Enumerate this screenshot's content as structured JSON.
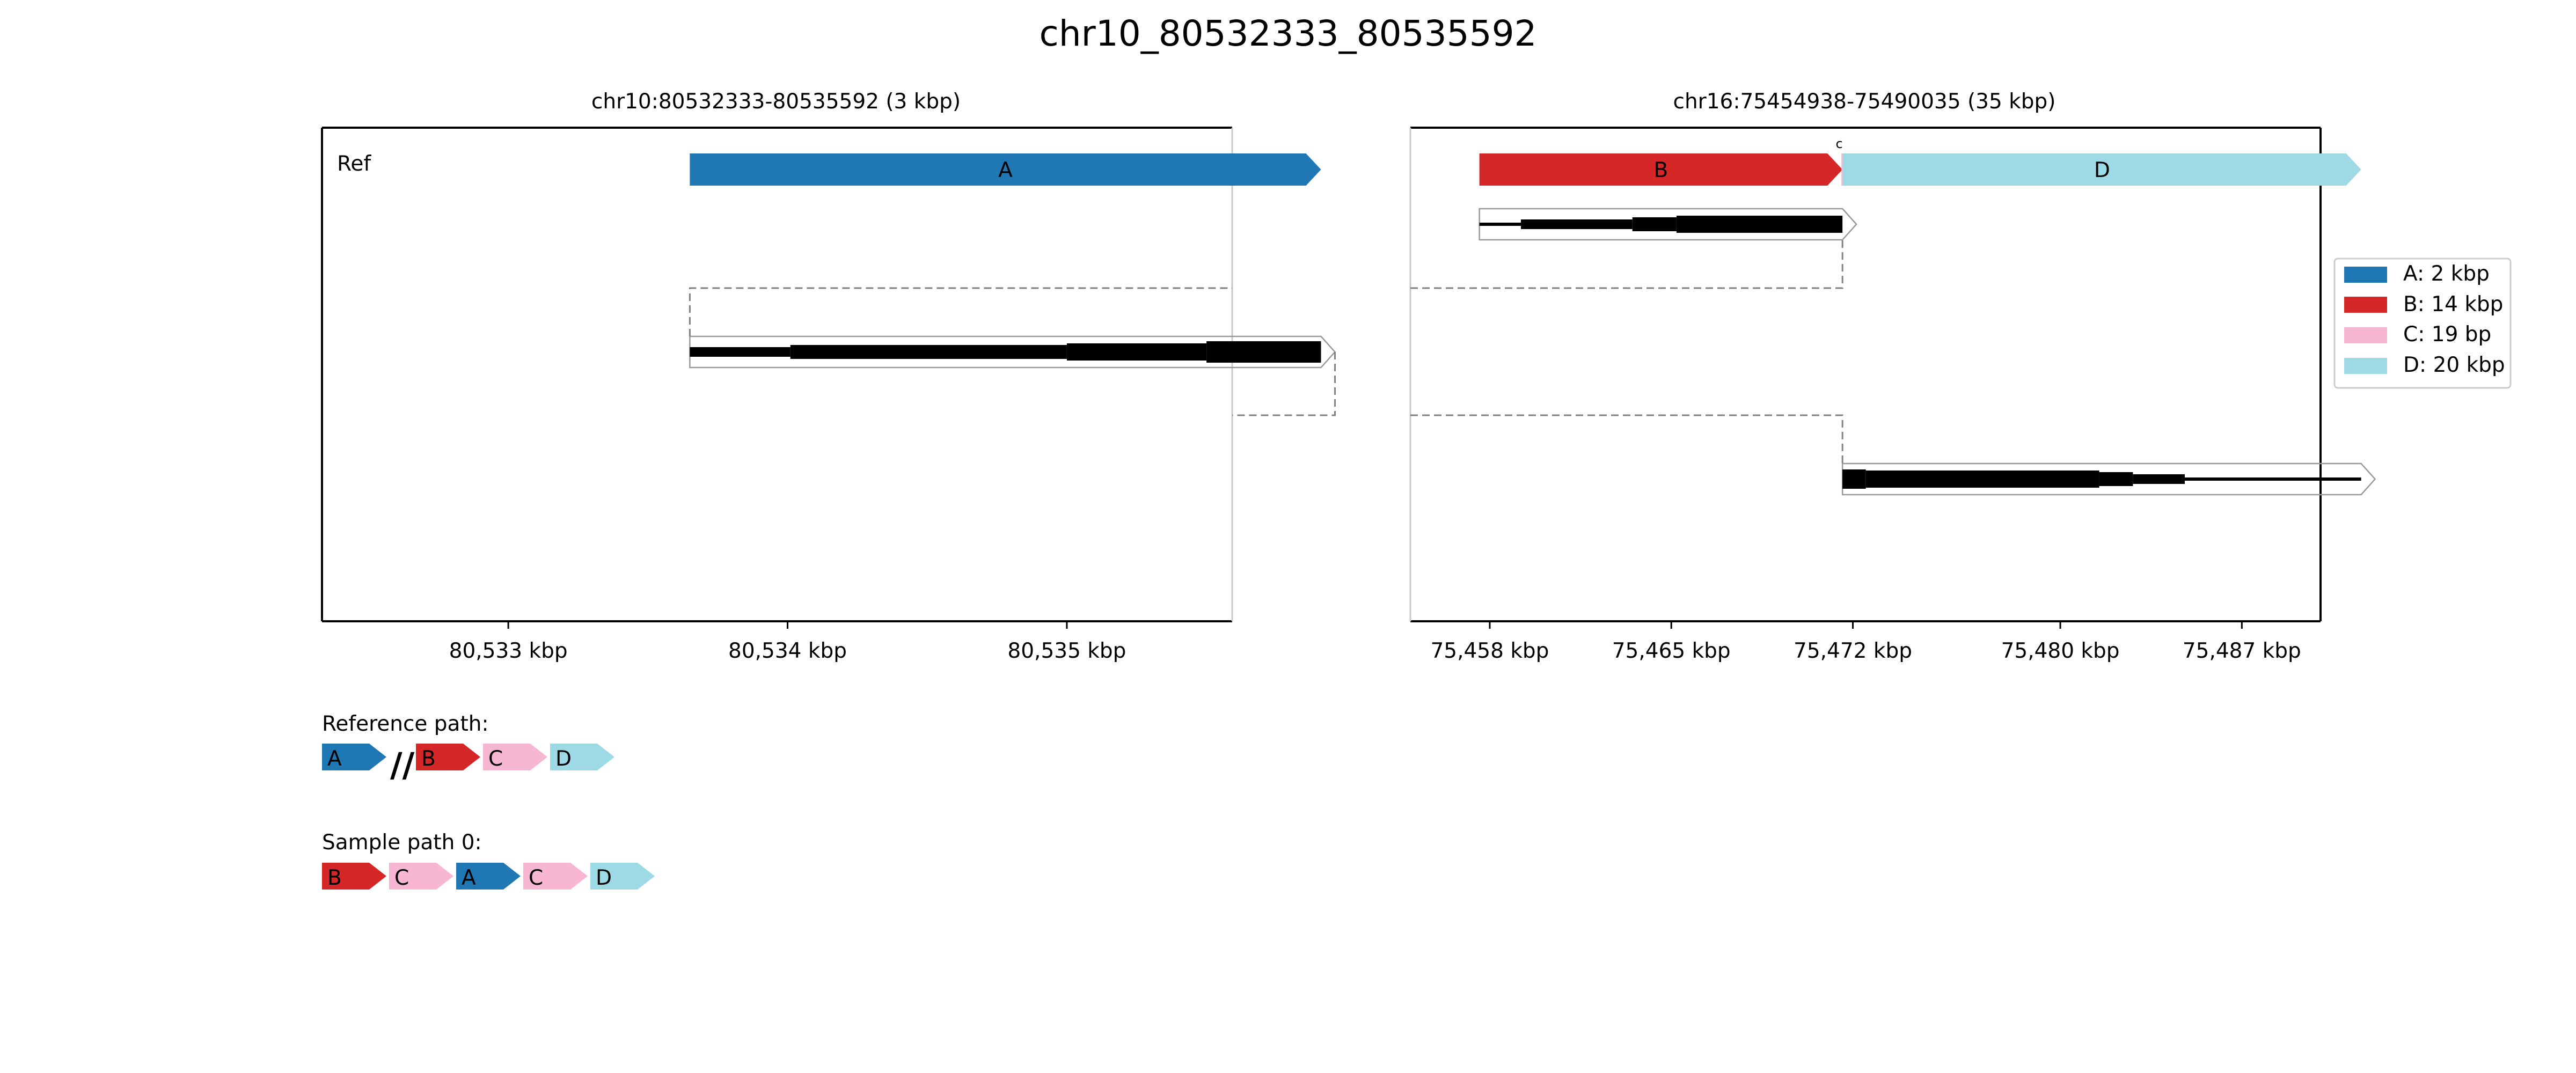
{
  "title": "chr10_80532333_80535592",
  "colors": {
    "A": "#1f77b4",
    "B": "#d62728",
    "C": "#f7b6d2",
    "D": "#9edae5",
    "read": "#000000",
    "frame": "#000000",
    "link": "#808080"
  },
  "panels": [
    {
      "title": "chr10:80532333-80535592 (3 kbp)",
      "track_label": "Ref",
      "xlim": [
        80532333,
        80535592
      ],
      "ticks": [
        {
          "value": 80533000,
          "label": "80,533 kbp"
        },
        {
          "value": 80534000,
          "label": "80,534 kbp"
        },
        {
          "value": 80535000,
          "label": "80,535 kbp"
        }
      ],
      "segments": [
        {
          "id": "A",
          "start": 80533650,
          "end": 80535910,
          "label": "A"
        }
      ],
      "read": {
        "start": 80533650,
        "end": 80535910,
        "blocks": [
          {
            "start": 80533650,
            "end": 80534010,
            "level": 2
          },
          {
            "start": 80534010,
            "end": 80535000,
            "level": 3
          },
          {
            "start": 80535000,
            "end": 80535500,
            "level": 4
          },
          {
            "start": 80535500,
            "end": 80535910,
            "level": 5
          }
        ]
      }
    },
    {
      "title": "chr16:75454938-75490035 (35 kbp)",
      "track_label": "",
      "xlim": [
        75454938,
        75490035
      ],
      "ticks": [
        {
          "value": 75458000,
          "label": "75,458 kbp"
        },
        {
          "value": 75465000,
          "label": "75,465 kbp"
        },
        {
          "value": 75472000,
          "label": "75,472 kbp"
        },
        {
          "value": 75480000,
          "label": "75,480 kbp"
        },
        {
          "value": 75487000,
          "label": "75,487 kbp"
        }
      ],
      "segments": [
        {
          "id": "B",
          "start": 75457600,
          "end": 75471600,
          "label": "B"
        },
        {
          "id": "C",
          "start": 75471600,
          "end": 75471619,
          "label": "C"
        },
        {
          "id": "D",
          "start": 75471619,
          "end": 75491600,
          "label": "D"
        }
      ],
      "reads": [
        {
          "start": 75457600,
          "end": 75471600,
          "blocks": [
            {
              "start": 75457600,
              "end": 75459200,
              "level": 1
            },
            {
              "start": 75459200,
              "end": 75463500,
              "level": 2
            },
            {
              "start": 75463500,
              "end": 75465200,
              "level": 3
            },
            {
              "start": 75465200,
              "end": 75471600,
              "level": 4
            }
          ]
        },
        {
          "start": 75471600,
          "end": 75491600,
          "blocks": [
            {
              "start": 75471600,
              "end": 75472500,
              "level": 6
            },
            {
              "start": 75472500,
              "end": 75481500,
              "level": 4
            },
            {
              "start": 75481500,
              "end": 75482800,
              "level": 3
            },
            {
              "start": 75482800,
              "end": 75484800,
              "level": 2
            },
            {
              "start": 75484800,
              "end": 75491600,
              "level": 1
            }
          ]
        }
      ]
    }
  ],
  "legend": [
    {
      "id": "A",
      "label": "A: 2 kbp"
    },
    {
      "id": "B",
      "label": "B: 14 kbp"
    },
    {
      "id": "C",
      "label": "C: 19 bp"
    },
    {
      "id": "D",
      "label": "D: 20 kbp"
    }
  ],
  "paths": [
    {
      "title": "Reference path:",
      "items": [
        "A",
        "//",
        "B",
        "C",
        "D"
      ]
    },
    {
      "title": "Sample path 0:",
      "items": [
        "B",
        "C",
        "A",
        "C",
        "D"
      ]
    }
  ]
}
